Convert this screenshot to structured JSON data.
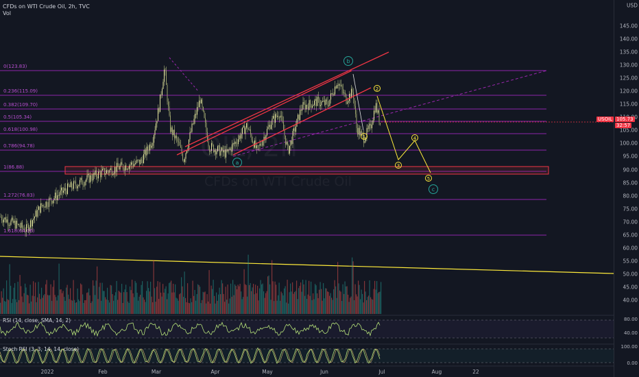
{
  "header": {
    "symbol_line": "CFDs on WTI Crude Oil, 2h, TVC",
    "volume_label": "Vol"
  },
  "watermark": {
    "big": "OIL, 2h",
    "small": "CFDs on WTI Crude Oil"
  },
  "price_axis": {
    "currency": "USD",
    "ticks": [
      "145.00",
      "140.00",
      "135.00",
      "130.00",
      "125.00",
      "120.00",
      "115.00",
      "110.00",
      "105.00",
      "100.00",
      "95.00",
      "90.00",
      "85.00",
      "80.00",
      "75.00",
      "70.00",
      "65.00",
      "60.00",
      "55.00",
      "50.00",
      "45.00",
      "40.00"
    ],
    "rsi_ticks": [
      "80.00",
      "40.00"
    ],
    "stoch_ticks": [
      "100.00",
      "0.00"
    ],
    "last_symbol": "USOIL",
    "last_price": "105.73",
    "countdown": "32:57"
  },
  "time_axis": {
    "ticks": [
      "2022",
      "Feb",
      "Mar",
      "Apr",
      "May",
      "Jun",
      "Jul",
      "Aug",
      "22"
    ]
  },
  "fib_levels": [
    {
      "label": "0(123.83)"
    },
    {
      "label": "0.236(115.09)"
    },
    {
      "label": "0.382(109.70)"
    },
    {
      "label": "0.5(105.34)"
    },
    {
      "label": "0.618(100.98)"
    },
    {
      "label": "0.786(94.78)"
    },
    {
      "label": "1(86.88)"
    },
    {
      "label": "1.272(76.83)"
    },
    {
      "label": "1.618(64.06)"
    }
  ],
  "wave_labels": {
    "a": "a",
    "b": "b",
    "c": "c",
    "w1": "1",
    "w2": "2",
    "w3": "3",
    "w4": "4",
    "w5": "5"
  },
  "indicators": {
    "rsi_label": "RSI (14, close, SMA, 14, 2)",
    "stoch_label": "Stoch RSI (3, 3, 14, 14, close)"
  },
  "colors": {
    "background": "#131722",
    "fib": "#9c27b0",
    "channel": "#f23645",
    "wave": "#ffeb3b",
    "corrective": "#26a69a",
    "candle_up": "#26a69a",
    "candle_down": "#ef5350",
    "indicator": "#b7e37a"
  }
}
